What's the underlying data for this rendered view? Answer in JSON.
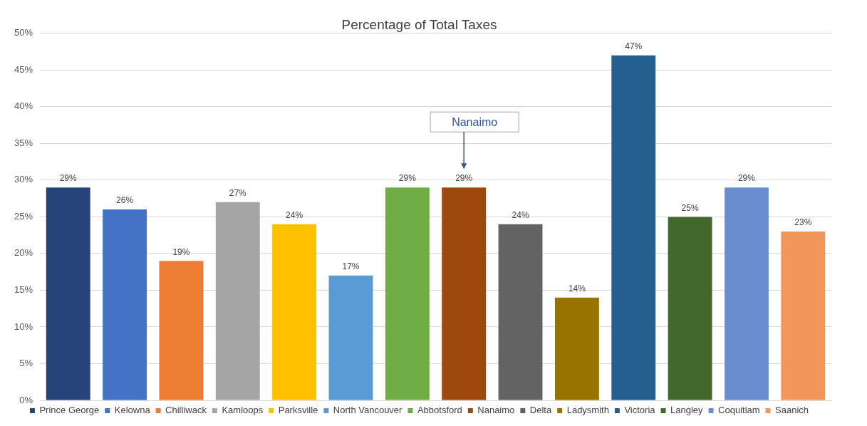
{
  "chart_data": {
    "type": "bar",
    "title": "Percentage of Total Taxes",
    "categories": [
      null,
      null,
      null,
      null,
      null,
      null,
      null,
      null,
      null,
      null,
      null,
      null,
      null,
      null
    ],
    "series": [
      {
        "name": "Prince George",
        "color": "#264478",
        "values": [
          29,
          null,
          null,
          null,
          null,
          null,
          null,
          null,
          null,
          null,
          null,
          null,
          null,
          null
        ],
        "value_labels": [
          "29%",
          null,
          null,
          null,
          null,
          null,
          null,
          null,
          null,
          null,
          null,
          null,
          null,
          null
        ]
      },
      {
        "name": "Kelowna",
        "color": "#4472c4",
        "values": [
          null,
          26,
          null,
          null,
          null,
          null,
          null,
          null,
          null,
          null,
          null,
          null,
          null,
          null
        ],
        "value_labels": [
          null,
          "26%",
          null,
          null,
          null,
          null,
          null,
          null,
          null,
          null,
          null,
          null,
          null,
          null
        ]
      },
      {
        "name": "Chilliwack",
        "color": "#ed7d31",
        "values": [
          null,
          null,
          19,
          null,
          null,
          null,
          null,
          null,
          null,
          null,
          null,
          null,
          null,
          null
        ],
        "value_labels": [
          null,
          null,
          "19%",
          null,
          null,
          null,
          null,
          null,
          null,
          null,
          null,
          null,
          null,
          null
        ]
      },
      {
        "name": "Kamloops",
        "color": "#a5a5a5",
        "values": [
          null,
          null,
          null,
          27,
          null,
          null,
          null,
          null,
          null,
          null,
          null,
          null,
          null,
          null
        ],
        "value_labels": [
          null,
          null,
          null,
          "27%",
          null,
          null,
          null,
          null,
          null,
          null,
          null,
          null,
          null,
          null
        ]
      },
      {
        "name": "Parksville",
        "color": "#ffc000",
        "values": [
          null,
          null,
          null,
          null,
          24,
          null,
          null,
          null,
          null,
          null,
          null,
          null,
          null,
          null
        ],
        "value_labels": [
          null,
          null,
          null,
          null,
          "24%",
          null,
          null,
          null,
          null,
          null,
          null,
          null,
          null,
          null
        ]
      },
      {
        "name": "North Vancouver",
        "color": "#5b9bd5",
        "values": [
          null,
          null,
          null,
          null,
          null,
          17,
          null,
          null,
          null,
          null,
          null,
          null,
          null,
          null
        ],
        "value_labels": [
          null,
          null,
          null,
          null,
          null,
          "17%",
          null,
          null,
          null,
          null,
          null,
          null,
          null,
          null
        ]
      },
      {
        "name": "Abbotsford",
        "color": "#70ad47",
        "values": [
          null,
          null,
          null,
          null,
          null,
          null,
          29,
          null,
          null,
          null,
          null,
          null,
          null,
          null
        ],
        "value_labels": [
          null,
          null,
          null,
          null,
          null,
          null,
          "29%",
          null,
          null,
          null,
          null,
          null,
          null,
          null
        ]
      },
      {
        "name": "Nanaimo",
        "color": "#9e480e",
        "values": [
          null,
          null,
          null,
          null,
          null,
          null,
          null,
          29,
          null,
          null,
          null,
          null,
          null,
          null
        ],
        "value_labels": [
          null,
          null,
          null,
          null,
          null,
          null,
          null,
          "29%",
          null,
          null,
          null,
          null,
          null,
          null
        ]
      },
      {
        "name": "Delta",
        "color": "#636363",
        "values": [
          null,
          null,
          null,
          null,
          null,
          null,
          null,
          null,
          24,
          null,
          null,
          null,
          null,
          null
        ],
        "value_labels": [
          null,
          null,
          null,
          null,
          null,
          null,
          null,
          null,
          "24%",
          null,
          null,
          null,
          null,
          null
        ]
      },
      {
        "name": "Ladysmith",
        "color": "#997300",
        "values": [
          null,
          null,
          null,
          null,
          null,
          null,
          null,
          null,
          null,
          14,
          null,
          null,
          null,
          null
        ],
        "value_labels": [
          null,
          null,
          null,
          null,
          null,
          null,
          null,
          null,
          null,
          "14%",
          null,
          null,
          null,
          null
        ]
      },
      {
        "name": "Victoria",
        "color": "#255e91",
        "values": [
          null,
          null,
          null,
          null,
          null,
          null,
          null,
          null,
          null,
          null,
          47,
          null,
          null,
          null
        ],
        "value_labels": [
          null,
          null,
          null,
          null,
          null,
          null,
          null,
          null,
          null,
          null,
          "47%",
          null,
          null,
          null
        ]
      },
      {
        "name": "Langley",
        "color": "#43682b",
        "values": [
          null,
          null,
          null,
          null,
          null,
          null,
          null,
          null,
          null,
          null,
          null,
          25,
          null,
          null
        ],
        "value_labels": [
          null,
          null,
          null,
          null,
          null,
          null,
          null,
          null,
          null,
          null,
          null,
          "25%",
          null,
          null
        ]
      },
      {
        "name": "Coquitlam",
        "color": "#698ed0",
        "values": [
          null,
          null,
          null,
          null,
          null,
          null,
          null,
          null,
          null,
          null,
          null,
          null,
          29,
          null
        ],
        "value_labels": [
          null,
          null,
          null,
          null,
          null,
          null,
          null,
          null,
          null,
          null,
          null,
          null,
          "29%",
          null
        ]
      },
      {
        "name": "Saanich",
        "color": "#f1975a",
        "values": [
          null,
          null,
          null,
          null,
          null,
          null,
          null,
          null,
          null,
          null,
          null,
          null,
          null,
          23
        ],
        "value_labels": [
          null,
          null,
          null,
          null,
          null,
          null,
          null,
          null,
          null,
          null,
          null,
          null,
          null,
          "23%"
        ]
      }
    ],
    "ylim": [
      0,
      50
    ],
    "yticks": [
      {
        "value": 0,
        "label": "0%"
      },
      {
        "value": 5,
        "label": "5%"
      },
      {
        "value": 10,
        "label": "10%"
      },
      {
        "value": 15,
        "label": "15%"
      },
      {
        "value": 20,
        "label": "20%"
      },
      {
        "value": 25,
        "label": "25%"
      },
      {
        "value": 30,
        "label": "30%"
      },
      {
        "value": 35,
        "label": "35%"
      },
      {
        "value": 40,
        "label": "40%"
      },
      {
        "value": 45,
        "label": "45%"
      },
      {
        "value": 50,
        "label": "50%"
      }
    ],
    "grid": "y",
    "legend": "bottom",
    "tick_labels": "y",
    "annotations": [
      "Nanaimo"
    ]
  }
}
